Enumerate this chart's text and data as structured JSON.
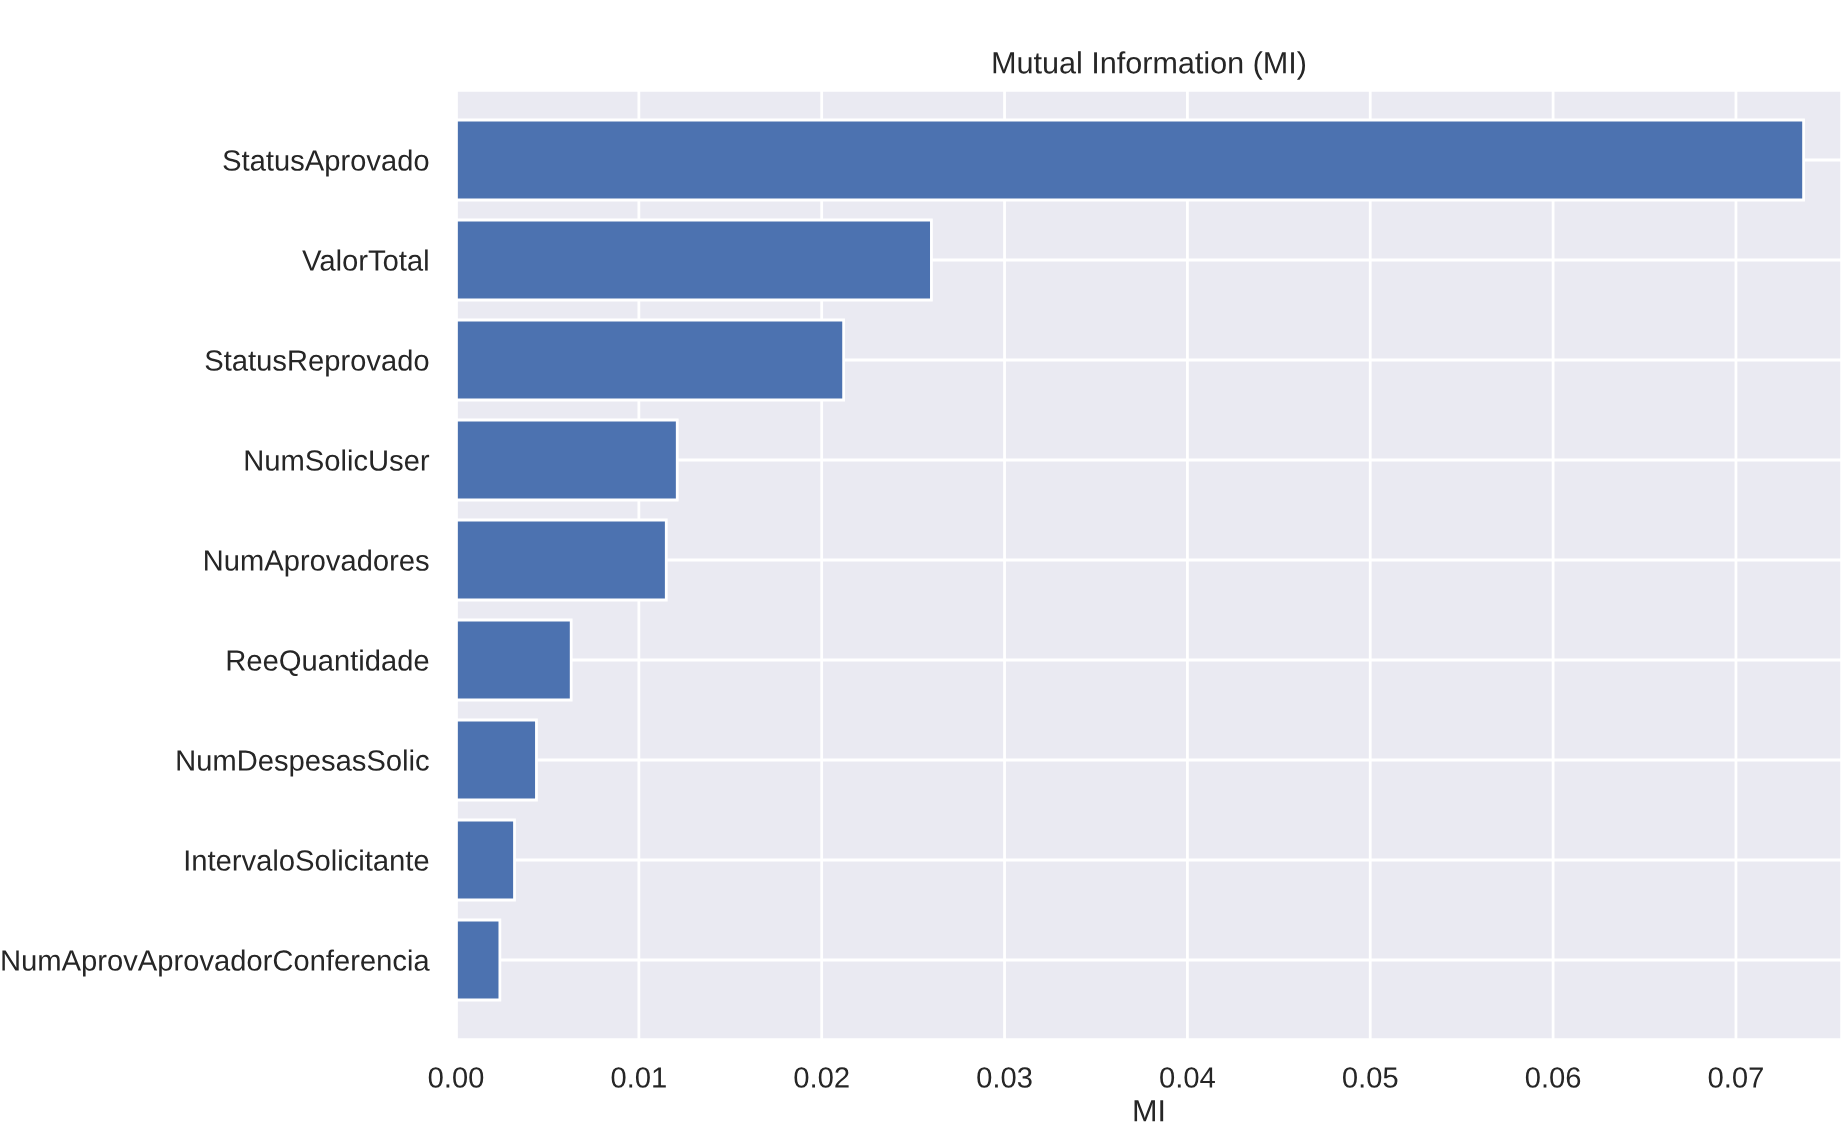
{
  "chart_data": {
    "type": "bar",
    "orientation": "horizontal",
    "title": "Mutual Information (MI)",
    "xlabel": "MI",
    "categories": [
      "StatusAprovado",
      "ValorTotal",
      "StatusReprovado",
      "NumSolicUser",
      "NumAprovadores",
      "ReeQuantidade",
      "NumDespesasSolic",
      "IntervaloSolicitante",
      "NumAprovAprovadorConferencia"
    ],
    "values": [
      0.0737,
      0.026,
      0.0212,
      0.0121,
      0.0115,
      0.0063,
      0.0044,
      0.0032,
      0.0024
    ],
    "color": "#4c72b0",
    "xlim": [
      0,
      0.0758
    ],
    "xticks": [
      {
        "value": 0,
        "label": "0.00"
      },
      0.01,
      0.02,
      0.03,
      0.04,
      0.05,
      0.06,
      0.07
    ],
    "grid": true
  }
}
